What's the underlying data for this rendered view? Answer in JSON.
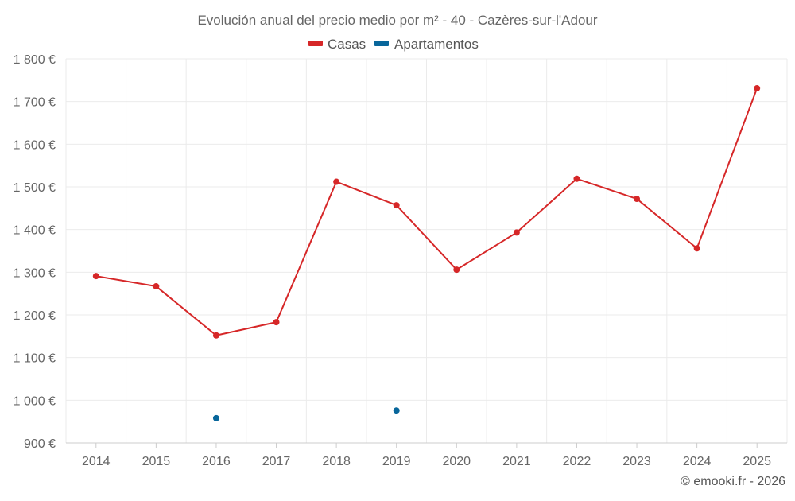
{
  "chart_data": {
    "type": "line",
    "title": "Evolución anual del precio medio por m² - 40 - Cazères-sur-l'Adour",
    "categories": [
      "2014",
      "2015",
      "2016",
      "2017",
      "2018",
      "2019",
      "2020",
      "2021",
      "2022",
      "2023",
      "2024",
      "2025"
    ],
    "series": [
      {
        "name": "Casas",
        "color": "#d62728",
        "values": [
          1291,
          1267,
          1152,
          1183,
          1512,
          1457,
          1306,
          1393,
          1519,
          1472,
          1356,
          1731
        ]
      },
      {
        "name": "Apartamentos",
        "color": "#08669b",
        "values": [
          null,
          null,
          958,
          null,
          null,
          976,
          null,
          null,
          null,
          null,
          null,
          null
        ]
      }
    ],
    "ylim": [
      900,
      1800
    ],
    "yticks": [
      900,
      1000,
      1100,
      1200,
      1300,
      1400,
      1500,
      1600,
      1700,
      1800
    ],
    "ytick_labels": [
      "900 €",
      "1 000 €",
      "1 100 €",
      "1 200 €",
      "1 300 €",
      "1 400 €",
      "1 500 €",
      "1 600 €",
      "1 700 €",
      "1 800 €"
    ],
    "legend_position": "top-center",
    "grid": true
  },
  "credit": "© emooki.fr - 2026"
}
